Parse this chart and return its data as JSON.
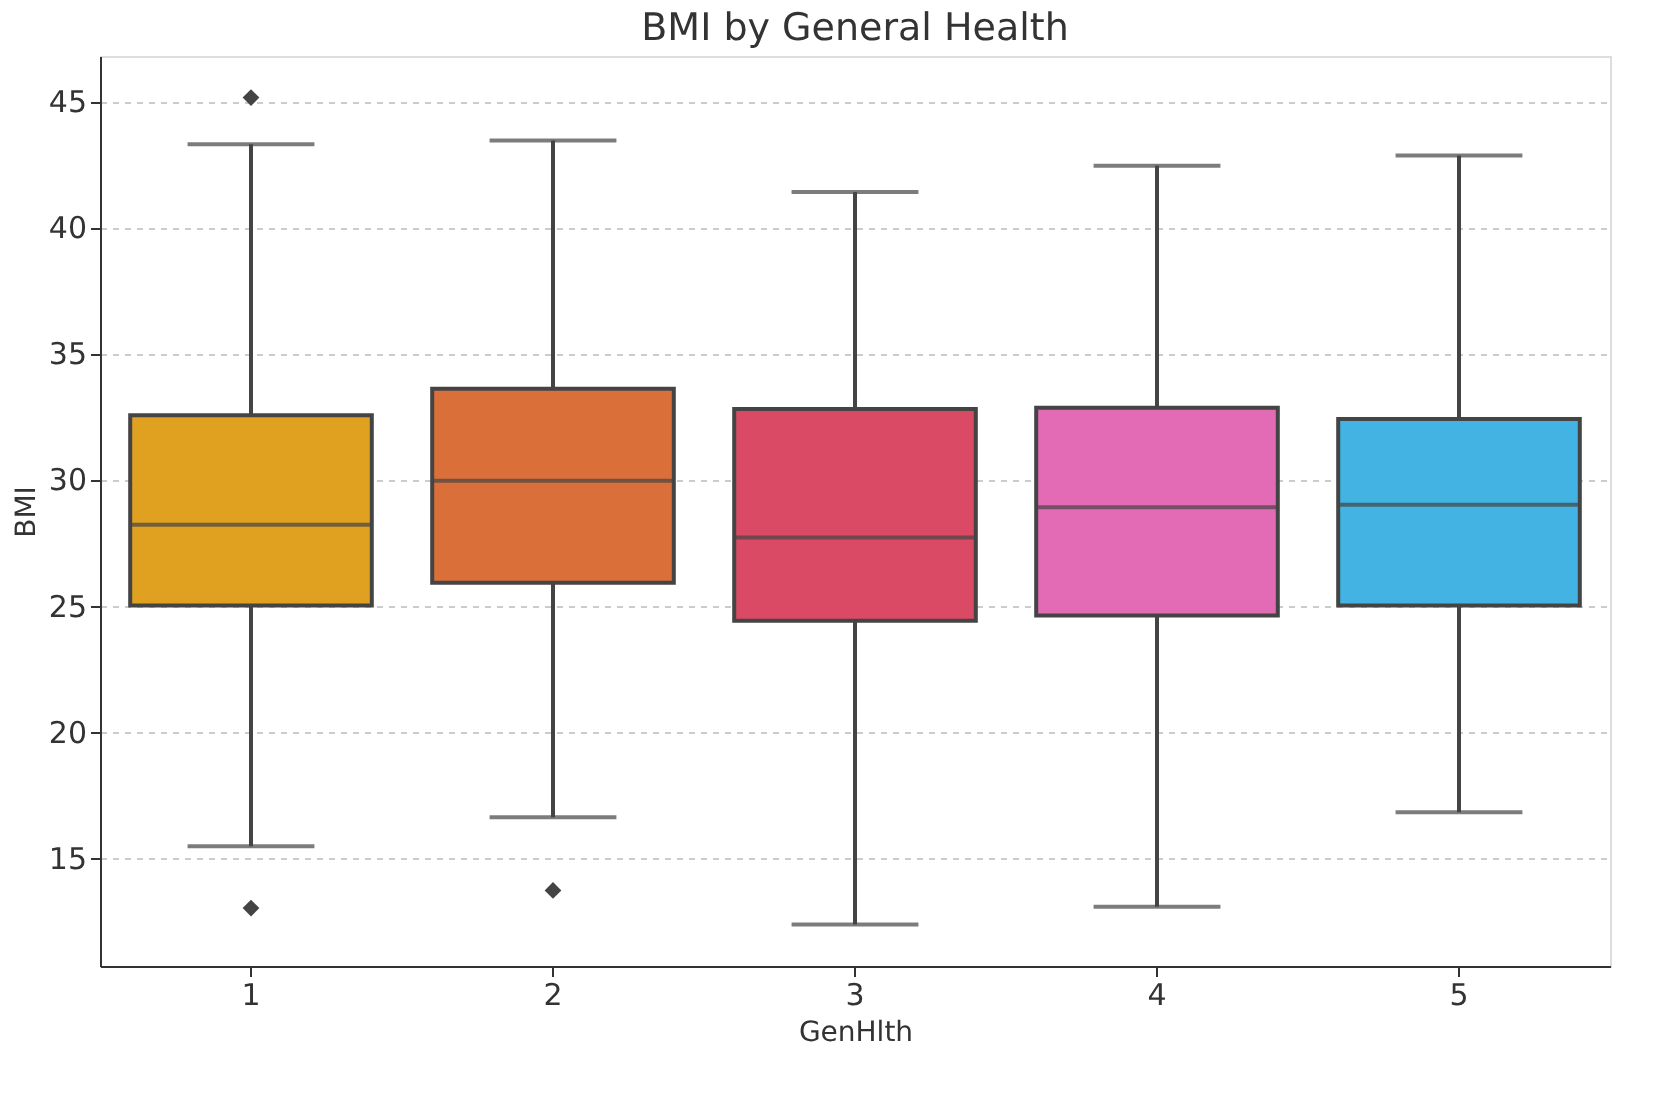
{
  "chart_data": {
    "type": "box",
    "title": "BMI by General Health",
    "xlabel": "GenHlth",
    "ylabel": "BMI",
    "categories": [
      "1",
      "2",
      "3",
      "4",
      "5"
    ],
    "colors": [
      "#e0a020",
      "#db6f3a",
      "#db4a64",
      "#e36bb6",
      "#42b3e2"
    ],
    "boxes": [
      {
        "low": 15.45,
        "q1": 25.0,
        "median": 28.2,
        "q3": 32.55,
        "high": 43.3,
        "outliers": [
          45.15,
          13.0
        ]
      },
      {
        "low": 16.6,
        "q1": 25.9,
        "median": 29.95,
        "q3": 33.6,
        "high": 43.45,
        "outliers": [
          13.7
        ]
      },
      {
        "low": 12.35,
        "q1": 24.4,
        "median": 27.7,
        "q3": 32.8,
        "high": 41.4
      },
      {
        "low": 13.05,
        "q1": 24.6,
        "median": 28.9,
        "q3": 32.85,
        "high": 42.45
      },
      {
        "low": 16.8,
        "q1": 25.0,
        "median": 29.0,
        "q3": 32.4,
        "high": 42.85
      }
    ],
    "ylim": [
      10.7,
      46.8
    ],
    "yticks": [
      15,
      20,
      25,
      30,
      35,
      40,
      45
    ],
    "grid": "y"
  }
}
